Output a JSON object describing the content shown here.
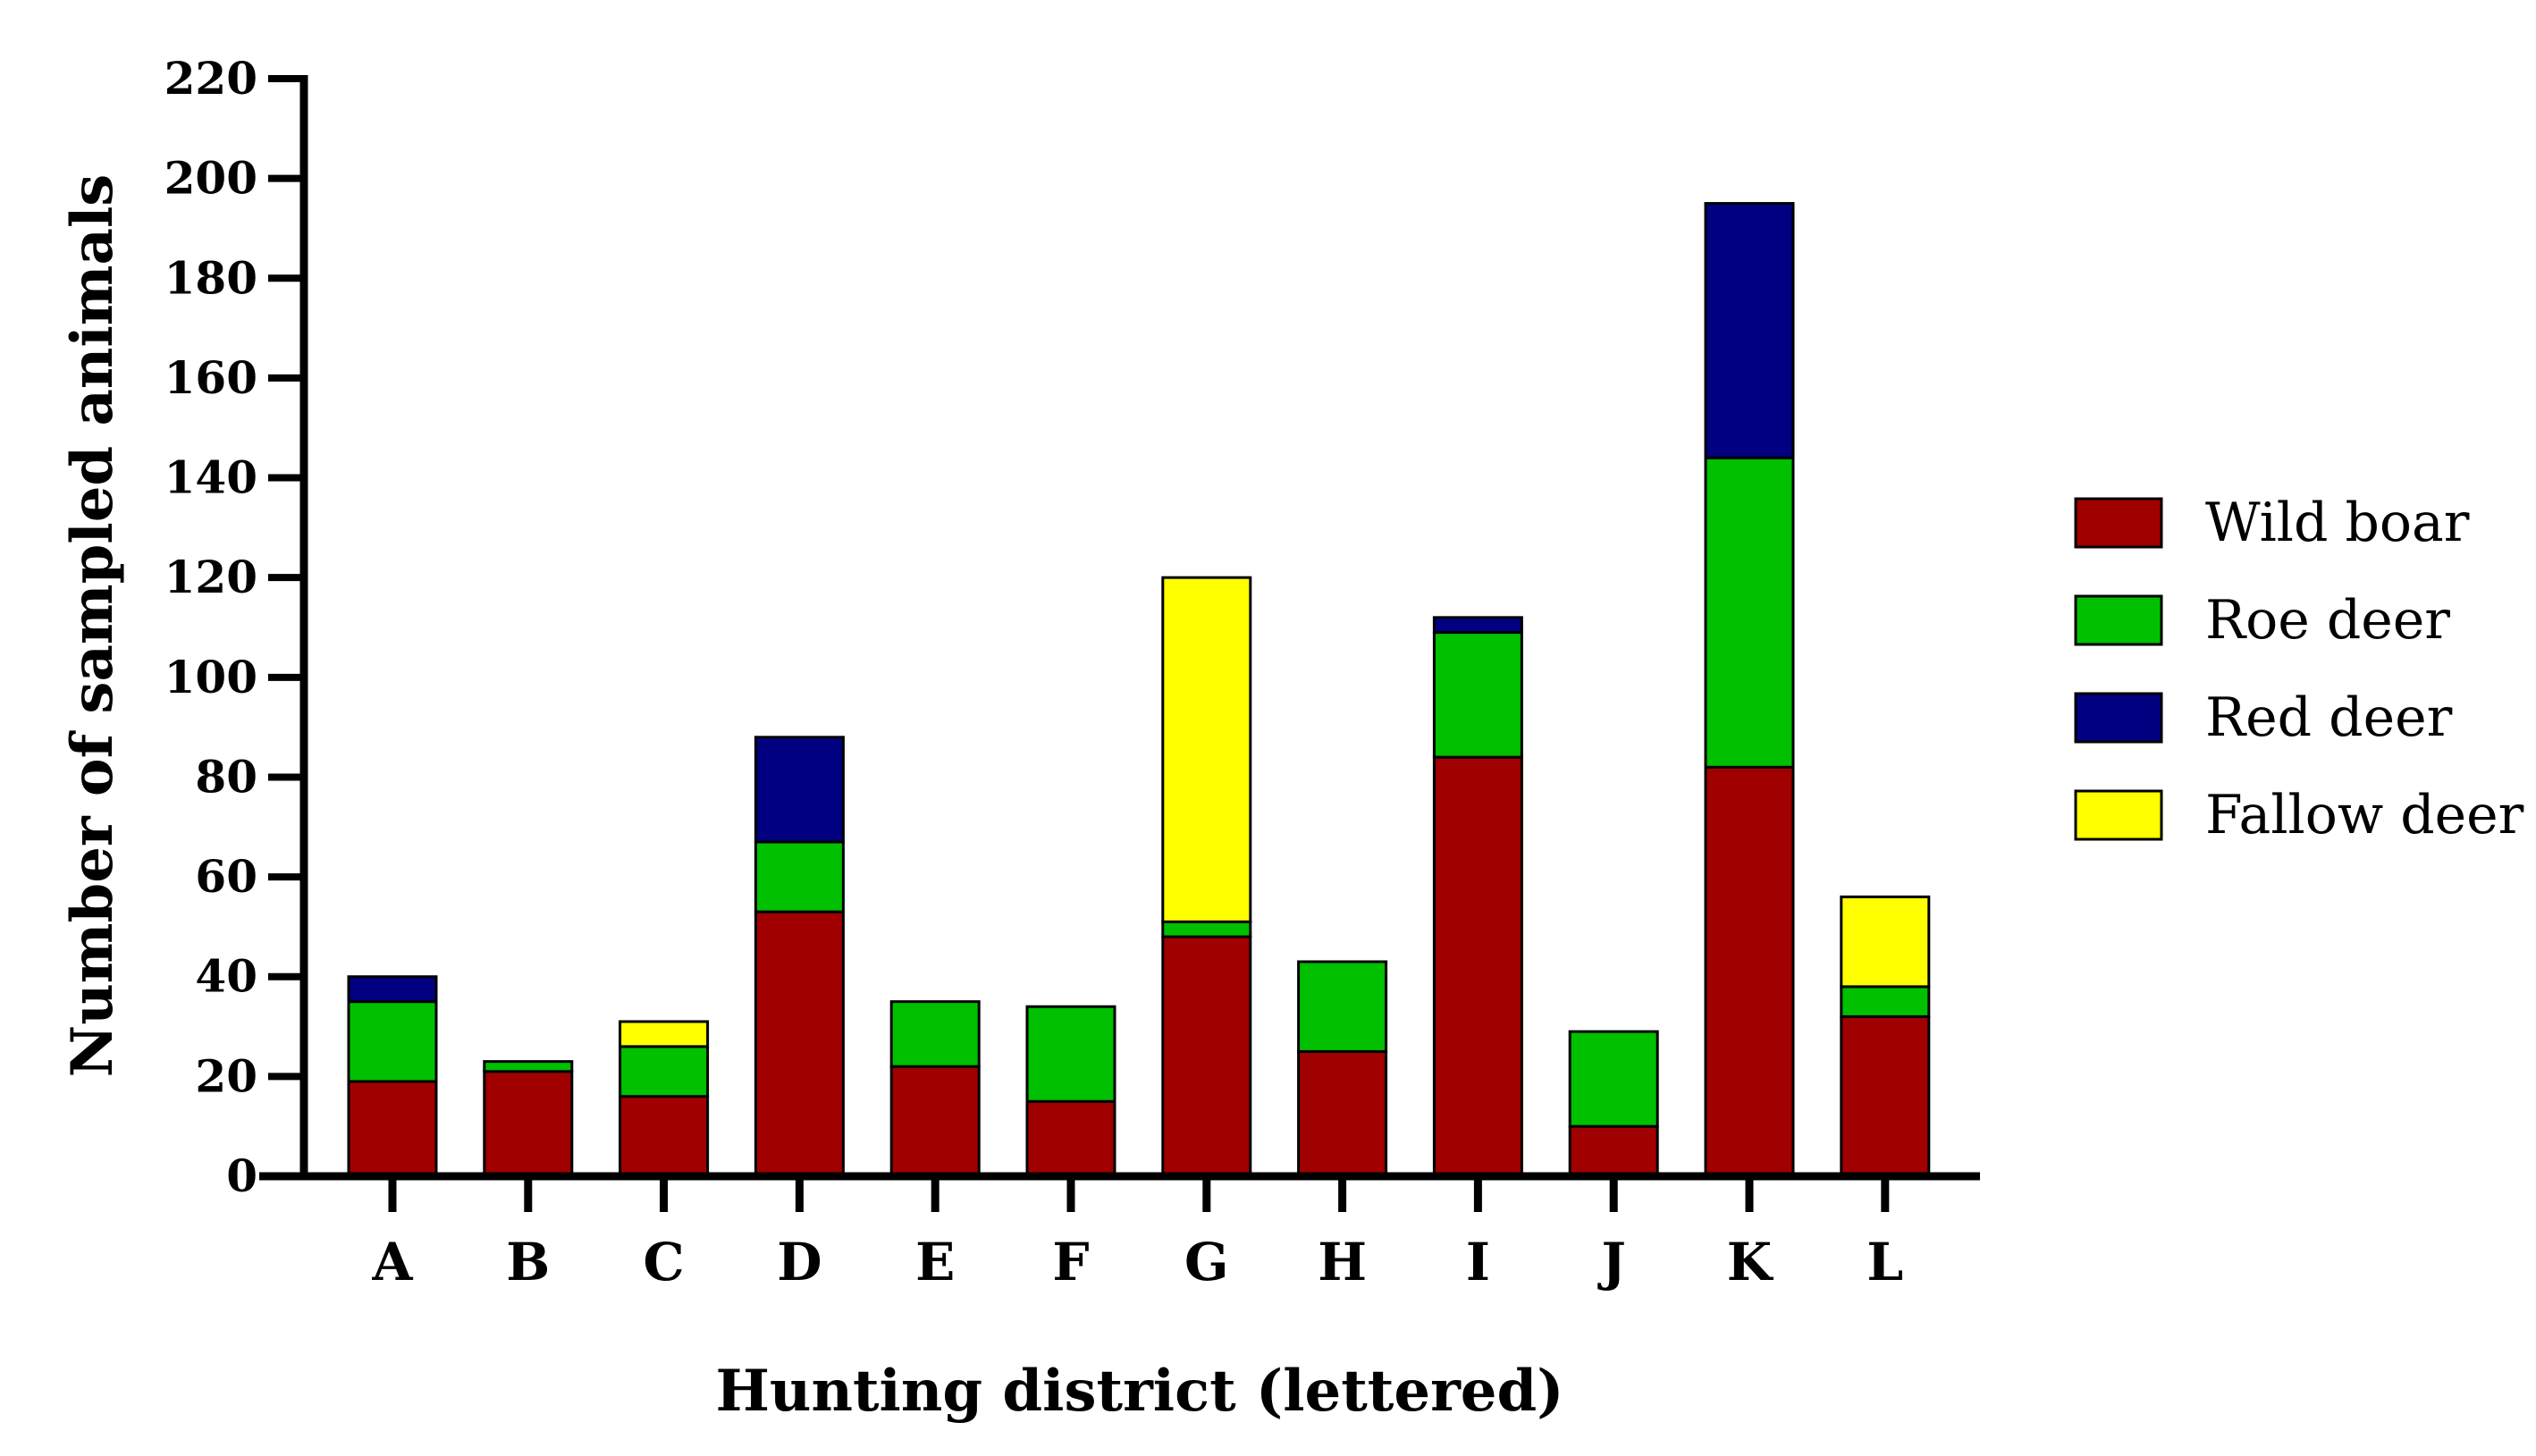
{
  "chart_data": {
    "type": "bar",
    "stacked": true,
    "xlabel": "Hunting district (lettered)",
    "ylabel": "Number of sampled animals",
    "ylim": [
      0,
      220
    ],
    "yticks": [
      0,
      20,
      40,
      60,
      80,
      100,
      120,
      140,
      160,
      180,
      200,
      220
    ],
    "categories": [
      "A",
      "B",
      "C",
      "D",
      "E",
      "F",
      "G",
      "H",
      "I",
      "J",
      "K",
      "L"
    ],
    "series": [
      {
        "name": "Wild boar",
        "color": "#a00000",
        "values": [
          19,
          21,
          16,
          53,
          22,
          15,
          48,
          25,
          84,
          10,
          82,
          32
        ]
      },
      {
        "name": "Roe deer",
        "color": "#00c000",
        "values": [
          16,
          2,
          10,
          14,
          13,
          19,
          3,
          18,
          25,
          19,
          62,
          6
        ]
      },
      {
        "name": "Red deer",
        "color": "#000080",
        "values": [
          5,
          0,
          0,
          21,
          0,
          0,
          0,
          0,
          3,
          0,
          51,
          0
        ]
      },
      {
        "name": "Fallow deer",
        "color": "#ffff00",
        "values": [
          0,
          0,
          5,
          0,
          0,
          0,
          69,
          0,
          0,
          0,
          0,
          18
        ]
      }
    ],
    "legend_position": "right",
    "grid": false
  }
}
